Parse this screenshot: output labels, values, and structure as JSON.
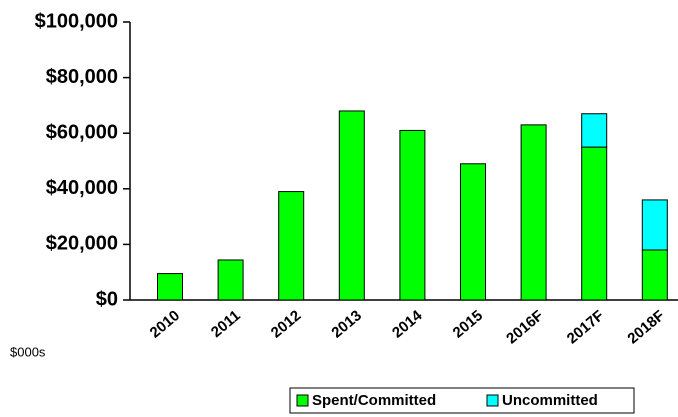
{
  "chart_data": {
    "type": "stacked_bar",
    "categories": [
      "2010",
      "2011",
      "2012",
      "2013",
      "2014",
      "2015",
      "2016F",
      "2017F",
      "2018F"
    ],
    "series": [
      {
        "name": "Spent/Committed",
        "color": "#00ff00",
        "values": [
          9500,
          14400,
          39000,
          68000,
          61000,
          49000,
          63000,
          55000,
          18000
        ]
      },
      {
        "name": "Uncommitted",
        "color": "#00ffff",
        "values": [
          null,
          null,
          null,
          null,
          null,
          null,
          null,
          12000,
          18000
        ]
      }
    ],
    "ylim": [
      0,
      100000
    ],
    "yticks": [
      {
        "value": 0,
        "label": "$0"
      },
      {
        "value": 20000,
        "label": "$20,000"
      },
      {
        "value": 40000,
        "label": "$40,000"
      },
      {
        "value": 60000,
        "label": "$60,000"
      },
      {
        "value": 80000,
        "label": "$80,000"
      },
      {
        "value": 100000,
        "label": "$100,000"
      }
    ],
    "annotation": "$000s",
    "grid": false
  }
}
